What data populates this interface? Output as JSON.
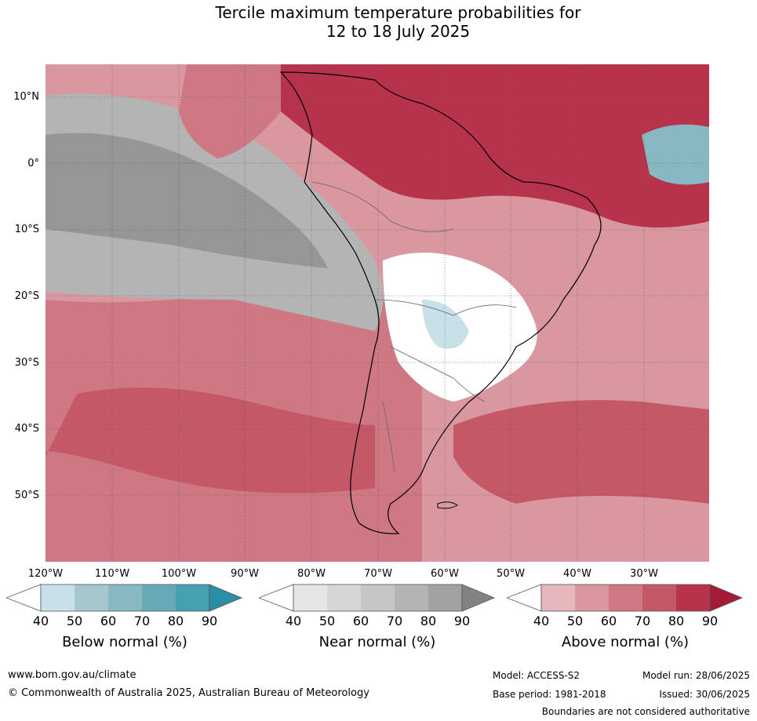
{
  "title_line1": "Tercile maximum temperature probabilities for",
  "title_line2": "12 to 18 July 2025",
  "lat_labels": [
    "10°N",
    "0°",
    "10°S",
    "20°S",
    "30°S",
    "40°S",
    "50°S"
  ],
  "lon_labels": [
    "120°W",
    "110°W",
    "100°W",
    "90°W",
    "80°W",
    "70°W",
    "60°W",
    "50°W",
    "40°W",
    "30°W"
  ],
  "colorbars": [
    {
      "title": "Below normal (%)",
      "ticks": [
        "40",
        "50",
        "60",
        "70",
        "80",
        "90"
      ],
      "colors": [
        "#c8e1e8",
        "#a6c7ce",
        "#88b9c2",
        "#68a9b8",
        "#45a0b2",
        "#2a8ea6"
      ]
    },
    {
      "title": "Near normal (%)",
      "ticks": [
        "40",
        "50",
        "60",
        "70",
        "80",
        "90"
      ],
      "colors": [
        "#e6e6e6",
        "#d6d6d6",
        "#c6c6c6",
        "#b4b4b4",
        "#a2a2a2",
        "#828282"
      ]
    },
    {
      "title": "Above normal (%)",
      "ticks": [
        "40",
        "50",
        "60",
        "70",
        "80",
        "90"
      ],
      "colors": [
        "#e4b8bd",
        "#d9979f",
        "#cd7882",
        "#c55867",
        "#b7334b",
        "#a51a36"
      ]
    }
  ],
  "footer": {
    "website": "www.bom.gov.au/climate",
    "copyright": "© Commonwealth of Australia 2025, Australian Bureau of Meteorology",
    "model": "Model: ACCESS-S2",
    "base_period": "Base period: 1981-2018",
    "model_run": "Model run: 28/06/2025",
    "issued": "Issued: 30/06/2025",
    "disclaimer": "Boundaries are not considered authoritative"
  }
}
